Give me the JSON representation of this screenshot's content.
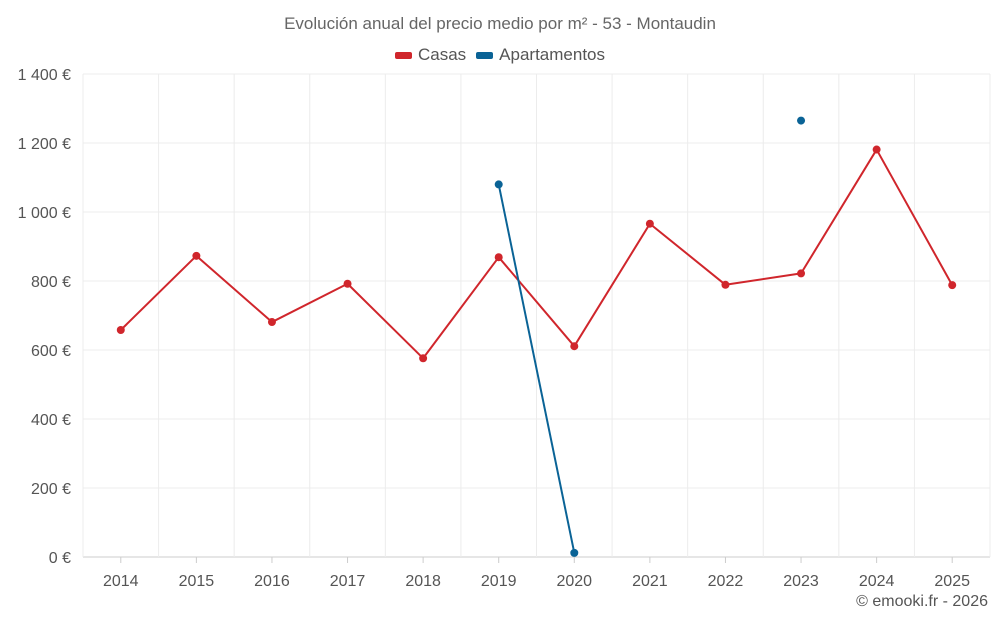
{
  "chart_data": {
    "type": "line",
    "title": "Evolución anual del precio medio por m² - 53 - Montaudin",
    "xlabel": "",
    "ylabel": "",
    "categories": [
      "2014",
      "2015",
      "2016",
      "2017",
      "2018",
      "2019",
      "2020",
      "2021",
      "2022",
      "2023",
      "2024",
      "2025"
    ],
    "ylim": [
      0,
      1400
    ],
    "yticks": [
      0,
      200,
      400,
      600,
      800,
      1000,
      1200,
      1400
    ],
    "ytick_labels": [
      "0 €",
      "200 €",
      "400 €",
      "600 €",
      "800 €",
      "1 000 €",
      "1 200 €",
      "1 400 €"
    ],
    "grid": true,
    "legend_position": "top-center",
    "series": [
      {
        "name": "Casas",
        "color": "#d0262c",
        "values": [
          658,
          873,
          681,
          792,
          576,
          869,
          611,
          966,
          789,
          822,
          1181,
          788
        ]
      },
      {
        "name": "Apartamentos",
        "color": "#0a6396",
        "values": [
          null,
          null,
          null,
          null,
          null,
          1080,
          12,
          null,
          null,
          1265,
          null,
          null
        ]
      }
    ]
  },
  "credit": "© emooki.fr - 2026"
}
